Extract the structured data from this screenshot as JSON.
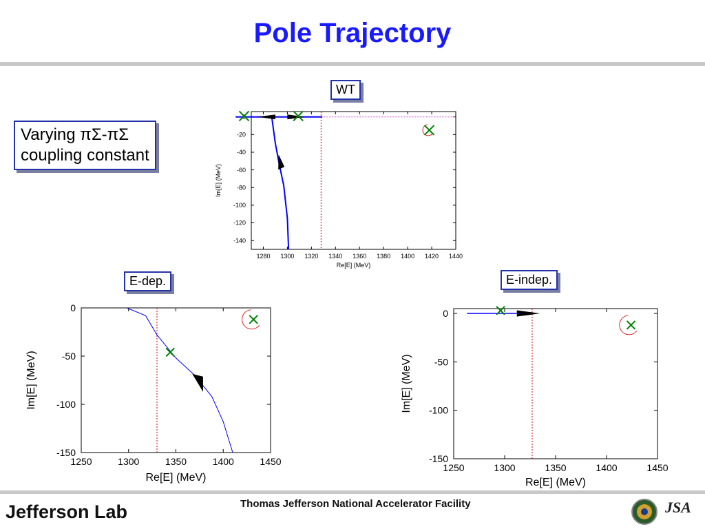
{
  "slide": {
    "title": "Pole Trajectory",
    "varying_line1": "Varying πΣ-πΣ",
    "varying_line2": "coupling constant",
    "footer_text": "Thomas Jefferson National Accelerator Facility",
    "logo_text": "Jefferson Lab",
    "jsa_text": "JSA",
    "colors": {
      "title": "#1a1aff",
      "box_border": "#2233aa",
      "trajectory": "#0000ff",
      "marker": "#008000",
      "threshold": "#cc0000"
    }
  },
  "chart_data": [
    {
      "name": "WT",
      "type": "line",
      "label": "WT",
      "xlabel": "Re[E] (MeV)",
      "ylabel": "Im[E] (MeV)",
      "xlim": [
        1270,
        1440
      ],
      "ylim": [
        -150,
        6
      ],
      "xticks": [
        1280,
        1300,
        1320,
        1340,
        1360,
        1380,
        1400,
        1420,
        1440
      ],
      "yticks": [
        0,
        -20,
        -40,
        -60,
        -80,
        -100,
        -120,
        -140
      ],
      "xtick_labels": [
        "1280",
        "1300",
        "1320",
        "1340",
        "1360",
        "1380",
        "1400",
        "1420",
        "1440"
      ],
      "ytick_labels": [
        "0",
        "-20",
        "-40",
        "-60",
        "-80",
        "-100",
        "-120",
        "-140"
      ],
      "threshold_x": 1328,
      "trajectory": [
        [
          1301,
          -150
        ],
        [
          1300,
          -115
        ],
        [
          1297,
          -78
        ],
        [
          1293,
          -52
        ],
        [
          1290,
          -30
        ],
        [
          1288,
          -10
        ],
        [
          1287,
          0
        ],
        [
          1300,
          0
        ],
        [
          1329,
          0
        ]
      ],
      "trajectory_left": [
        [
          1257,
          0
        ],
        [
          1287,
          0
        ]
      ],
      "arrows": [
        {
          "x": 1295,
          "y": -55,
          "dir": "up"
        },
        {
          "x": 1290,
          "y": 0,
          "dir": "left"
        },
        {
          "x": 1300,
          "y": 0,
          "dir": "right"
        }
      ],
      "markers": [
        [
          1264,
          1
        ],
        [
          1309,
          1
        ],
        [
          1418,
          -15
        ]
      ],
      "arc": {
        "x": 1418,
        "y": -15
      }
    },
    {
      "name": "E-dep.",
      "type": "line",
      "label": "E-dep.",
      "xlabel": "Re[E] (MeV)",
      "ylabel": "Im[E] (MeV)",
      "xlim": [
        1250,
        1450
      ],
      "ylim": [
        -150,
        0
      ],
      "xticks": [
        1250,
        1300,
        1350,
        1400,
        1450
      ],
      "yticks": [
        0,
        -50,
        -100,
        -150
      ],
      "xtick_labels": [
        "1250",
        "1300",
        "1350",
        "1400",
        "1450"
      ],
      "ytick_labels": [
        "0",
        "-50",
        "-100",
        "-150"
      ],
      "threshold_x": 1330,
      "trajectory": [
        [
          1298,
          0
        ],
        [
          1318,
          -8
        ],
        [
          1330,
          -28
        ],
        [
          1350,
          -52
        ],
        [
          1370,
          -70
        ],
        [
          1388,
          -92
        ],
        [
          1400,
          -118
        ],
        [
          1410,
          -150
        ]
      ],
      "arrows": [
        {
          "x": 1373,
          "y": -75,
          "dir": "down"
        }
      ],
      "markers": [
        [
          1344,
          -46
        ],
        [
          1432,
          -12
        ]
      ],
      "arc": {
        "x": 1432,
        "y": -12
      }
    },
    {
      "name": "E-indep.",
      "type": "line",
      "label": "E-indep.",
      "xlabel": "Re[E] (MeV)",
      "ylabel": "Im[E] (MeV)",
      "xlim": [
        1250,
        1450
      ],
      "ylim": [
        -150,
        5
      ],
      "xticks": [
        1250,
        1300,
        1350,
        1400,
        1450
      ],
      "yticks": [
        0,
        -50,
        -100,
        -150
      ],
      "xtick_labels": [
        "1250",
        "1300",
        "1350",
        "1400",
        "1450"
      ],
      "ytick_labels": [
        "0",
        "-50",
        "-100",
        "-150"
      ],
      "threshold_x": 1327,
      "trajectory": [
        [
          1263,
          0
        ],
        [
          1325,
          0
        ]
      ],
      "arrows": [
        {
          "x": 1312,
          "y": 0,
          "dir": "right"
        }
      ],
      "markers": [
        [
          1296,
          3
        ],
        [
          1424,
          -12
        ]
      ],
      "arc": {
        "x": 1424,
        "y": -12
      }
    }
  ]
}
